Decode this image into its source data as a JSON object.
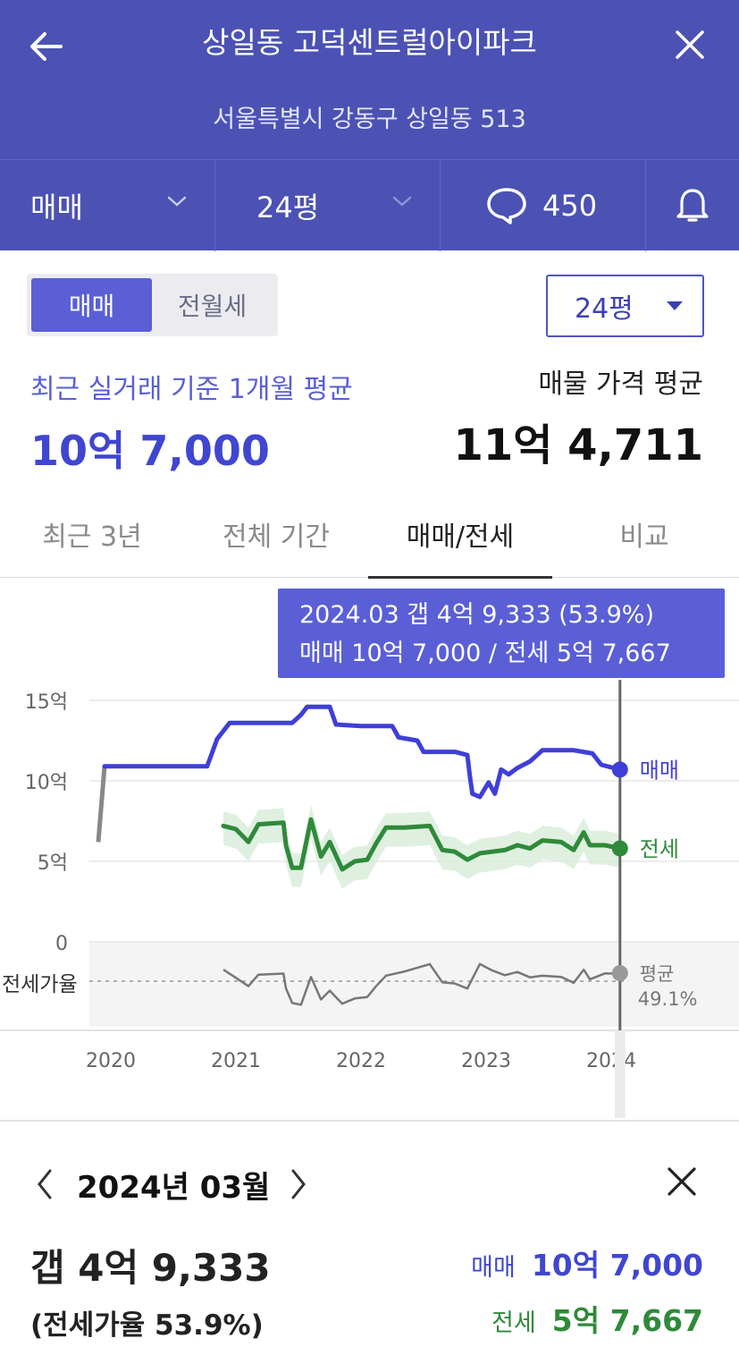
{
  "header": {
    "title": "상일동 고덕센트럴아이파크",
    "address": "서울특별시 강동구 상일동 513",
    "deal_type": "매매",
    "size": "24평",
    "comment_count": "450"
  },
  "toggle": {
    "options": [
      "매매",
      "전월세"
    ],
    "active": "매매"
  },
  "size_select": {
    "value": "24평"
  },
  "summary": {
    "recent_label": "최근 실거래 기준 1개월 평균",
    "recent_value": "10억 7,000",
    "listing_label": "매물 가격 평균",
    "listing_value": "11억 4,711"
  },
  "tabs": [
    {
      "label": "최근 3년"
    },
    {
      "label": "전체 기간"
    },
    {
      "label": "매매/전세",
      "active": true
    },
    {
      "label": "비교"
    }
  ],
  "tooltip": {
    "line1": "2024.03  갭 4억 9,333 (53.9%)",
    "line2": "매매 10억 7,000 / 전세 5억 7,667"
  },
  "chart_data": {
    "type": "line",
    "y_tick_labels": [
      "15억",
      "10억",
      "5억",
      "0"
    ],
    "ylim": [
      0,
      15
    ],
    "x_tick_labels": [
      "2020",
      "2021",
      "2022",
      "2023",
      "2024"
    ],
    "ratio_label": "전세가율",
    "ratio_avg_label": "평균",
    "ratio_avg_value": "49.1%",
    "grid": true,
    "colors": {
      "sale": "#3f3fd8",
      "jeonse": "#2f8a3a",
      "ratio": "#777777",
      "gray": "#888888"
    },
    "series": [
      {
        "name": "매매",
        "color": "#3f3fd8",
        "points": [
          [
            2020.0,
            6.2
          ],
          [
            2020.05,
            10.9
          ],
          [
            2020.2,
            10.9
          ],
          [
            2020.4,
            10.9
          ],
          [
            2020.6,
            10.9
          ],
          [
            2020.87,
            10.9
          ],
          [
            2020.95,
            12.6
          ],
          [
            2021.05,
            13.6
          ],
          [
            2021.3,
            13.6
          ],
          [
            2021.55,
            13.6
          ],
          [
            2021.62,
            14.1
          ],
          [
            2021.67,
            14.6
          ],
          [
            2021.85,
            14.6
          ],
          [
            2021.9,
            13.5
          ],
          [
            2022.1,
            13.4
          ],
          [
            2022.35,
            13.4
          ],
          [
            2022.4,
            12.7
          ],
          [
            2022.55,
            12.5
          ],
          [
            2022.6,
            11.8
          ],
          [
            2022.85,
            11.8
          ],
          [
            2022.95,
            11.6
          ],
          [
            2022.97,
            10.3
          ],
          [
            2022.99,
            9.2
          ],
          [
            2023.05,
            9.0
          ],
          [
            2023.12,
            9.9
          ],
          [
            2023.17,
            9.2
          ],
          [
            2023.22,
            10.7
          ],
          [
            2023.28,
            10.4
          ],
          [
            2023.35,
            10.8
          ],
          [
            2023.45,
            11.2
          ],
          [
            2023.55,
            11.9
          ],
          [
            2023.8,
            11.9
          ],
          [
            2023.95,
            11.7
          ],
          [
            2024.02,
            11.0
          ],
          [
            2024.17,
            10.7
          ]
        ]
      },
      {
        "name": "전세",
        "color": "#2f8a3a",
        "points": [
          [
            2021.0,
            7.2
          ],
          [
            2021.1,
            7.0
          ],
          [
            2021.2,
            6.2
          ],
          [
            2021.28,
            7.3
          ],
          [
            2021.48,
            7.4
          ],
          [
            2021.5,
            6.0
          ],
          [
            2021.55,
            4.6
          ],
          [
            2021.62,
            4.6
          ],
          [
            2021.7,
            7.6
          ],
          [
            2021.78,
            5.3
          ],
          [
            2021.85,
            6.2
          ],
          [
            2021.95,
            4.5
          ],
          [
            2022.05,
            5.0
          ],
          [
            2022.15,
            5.1
          ],
          [
            2022.22,
            6.1
          ],
          [
            2022.3,
            7.1
          ],
          [
            2022.45,
            7.1
          ],
          [
            2022.65,
            7.2
          ],
          [
            2022.75,
            5.7
          ],
          [
            2022.85,
            5.6
          ],
          [
            2022.95,
            5.1
          ],
          [
            2023.05,
            5.5
          ],
          [
            2023.15,
            5.6
          ],
          [
            2023.25,
            5.7
          ],
          [
            2023.35,
            6.0
          ],
          [
            2023.45,
            5.8
          ],
          [
            2023.55,
            6.3
          ],
          [
            2023.7,
            6.2
          ],
          [
            2023.8,
            5.7
          ],
          [
            2023.88,
            6.8
          ],
          [
            2023.93,
            6.0
          ],
          [
            2024.05,
            6.0
          ],
          [
            2024.17,
            5.8
          ]
        ]
      }
    ],
    "current_point_x": 2024.17
  },
  "detail": {
    "date": "2024년 03월",
    "gap": "갭 4억 9,333",
    "ratio": "(전세가율 53.9%)",
    "sale_label": "매매",
    "sale_value": "10억 7,000",
    "jeonse_label": "전세",
    "jeonse_value": "5억 7,667"
  }
}
